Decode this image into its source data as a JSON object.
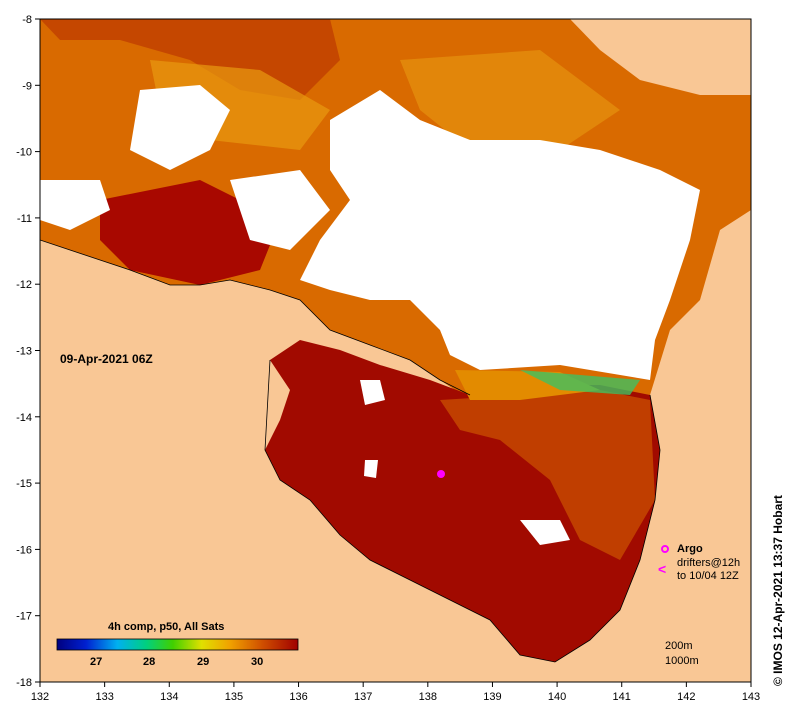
{
  "map": {
    "x_axis": {
      "ticks": [
        "132",
        "133",
        "134",
        "135",
        "136",
        "137",
        "138",
        "139",
        "140",
        "141",
        "142",
        "143"
      ],
      "min": 132,
      "max": 143
    },
    "y_axis": {
      "ticks": [
        "-8",
        "-9",
        "-10",
        "-11",
        "-12",
        "-13",
        "-14",
        "-15",
        "-16",
        "-17",
        "-18"
      ],
      "min": -18,
      "max": -8
    },
    "date_label": "09-Apr-2021 06Z",
    "colorbar": {
      "title": "4h comp, p50, All Sats",
      "ticks": [
        "27",
        "28",
        "29",
        "30"
      ],
      "min": 26.3,
      "max": 31.0
    },
    "credit": "© IMOS 12-Apr-2021 13:37 Hobart",
    "legend": {
      "argo": "Argo",
      "drifters": "drifters@12h",
      "drifters_date": "to 10/04 12Z",
      "depth_200": "200m",
      "depth_1000": "1000m"
    },
    "colors": {
      "land": "#f9c795",
      "no_data": "#ffffff",
      "sst_hot": "#a10a00",
      "sst_warm": "#c84b00",
      "sst_mid": "#e38b00",
      "argo": "#ff00ff"
    }
  }
}
